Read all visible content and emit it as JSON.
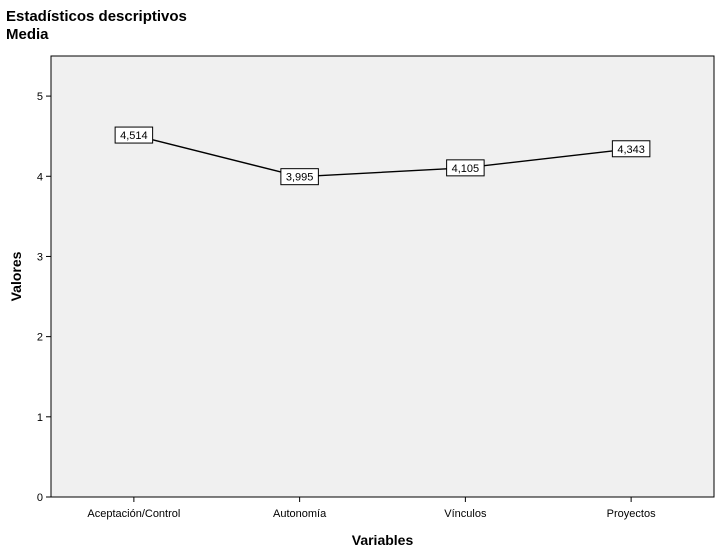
{
  "chart_data": {
    "type": "line",
    "title": "Estadísticos descriptivos",
    "subtitle": "Media",
    "xlabel": "Variables",
    "ylabel": "Valores",
    "categories": [
      "Aceptación/Control",
      "Autonomía",
      "Vínculos",
      "Proyectos"
    ],
    "series": [
      {
        "values": [
          4.514,
          3.995,
          4.105,
          4.343
        ],
        "labels": [
          "4,514",
          "3,995",
          "4,105",
          "4,343"
        ]
      }
    ],
    "ylim": [
      0,
      5.5
    ],
    "yticks": [
      0,
      1,
      2,
      3,
      4,
      5
    ],
    "ytick_labels": [
      "0",
      "1",
      "2",
      "3",
      "4",
      "5"
    ],
    "grid": false,
    "legend": "none",
    "colors": {
      "plot_background": "#f0f0f0",
      "line": "#000000",
      "label_box": "#ffffff"
    }
  }
}
